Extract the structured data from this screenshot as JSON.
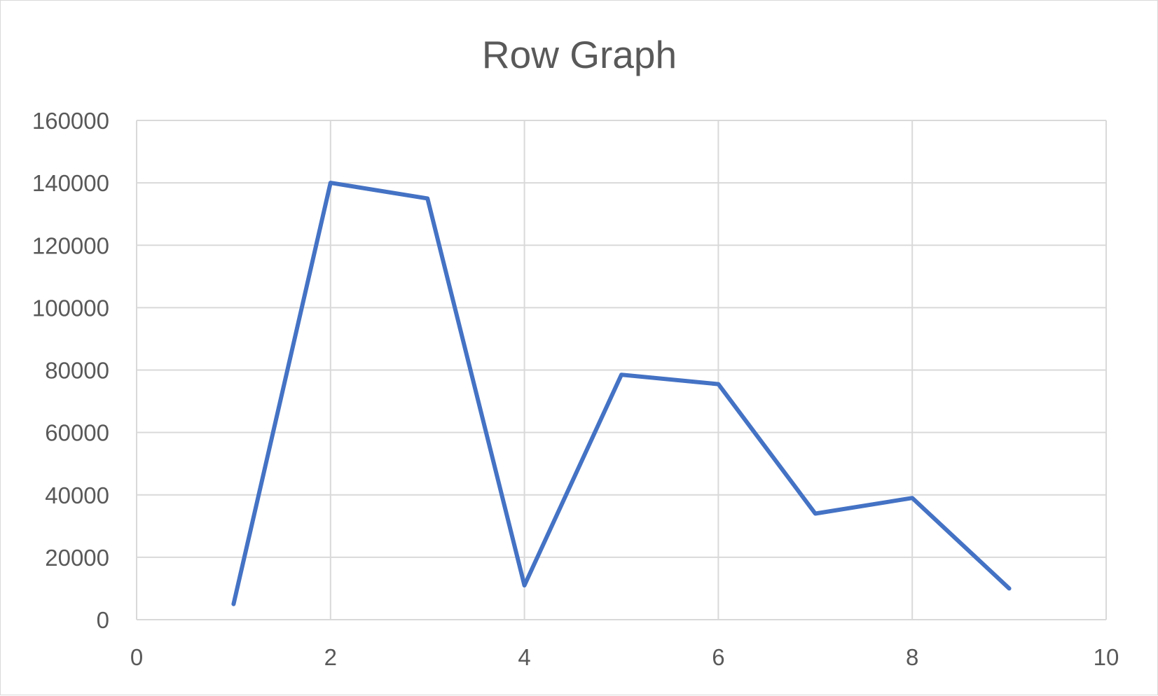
{
  "chart_data": {
    "type": "scatter",
    "title": "Row Graph",
    "xlabel": "",
    "ylabel": "",
    "xlim": [
      0,
      10
    ],
    "ylim": [
      0,
      160000
    ],
    "x_ticks": [
      "0",
      "2",
      "4",
      "6",
      "8",
      "10"
    ],
    "y_ticks": [
      "0",
      "20000",
      "40000",
      "60000",
      "80000",
      "100000",
      "120000",
      "140000",
      "160000"
    ],
    "grid": true,
    "legend": "none",
    "series": [
      {
        "color": "#4472c4",
        "style": "straight lines, no markers",
        "x": [
          1,
          2,
          3,
          4,
          5,
          6,
          7,
          8,
          9
        ],
        "y": [
          5000,
          140000,
          135000,
          11000,
          78500,
          75500,
          34000,
          39000,
          10000
        ]
      }
    ]
  }
}
